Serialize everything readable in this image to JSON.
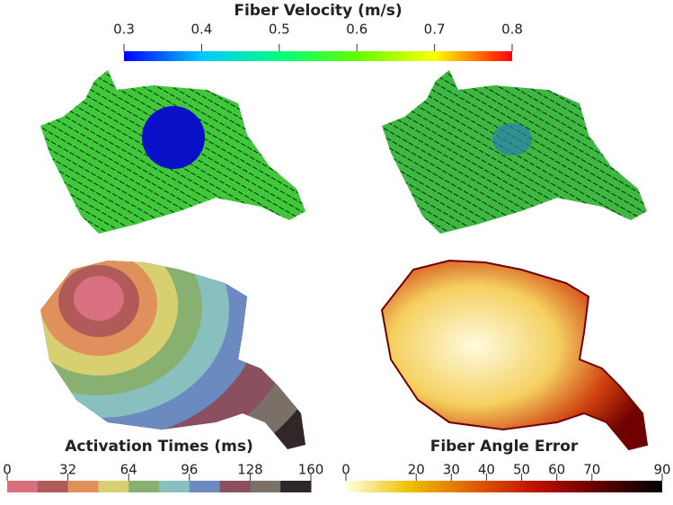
{
  "colorbars": [
    {
      "title": "Fiber Velocity (m/s)",
      "lim": [
        0.3,
        0.8
      ],
      "ticks": [
        0.3,
        0.4,
        0.5,
        0.6,
        0.7,
        0.8
      ],
      "discrete": false,
      "colors": [
        "#0000ff",
        "#00c8ff",
        "#00ff80",
        "#60ff00",
        "#ffff00",
        "#ff0000"
      ]
    },
    {
      "title": "Activation Times (ms)",
      "lim": [
        0,
        160
      ],
      "ticks": [
        0,
        32,
        64,
        96,
        128,
        160
      ],
      "discrete": true,
      "colors": [
        "#d87080",
        "#b05a5a",
        "#e0905a",
        "#d8d070",
        "#88b070",
        "#88c0c0",
        "#6a8ac0",
        "#8a5060",
        "#7a7068",
        "#302828"
      ]
    },
    {
      "title": "Fiber Angle Error",
      "lim": [
        0,
        90
      ],
      "ticks": [
        0,
        20,
        30,
        40,
        50,
        60,
        70,
        90
      ],
      "discrete": false,
      "colors": [
        "#ffffe0",
        "#f0c000",
        "#e06000",
        "#c01000",
        "#600000",
        "#000000"
      ]
    }
  ]
}
